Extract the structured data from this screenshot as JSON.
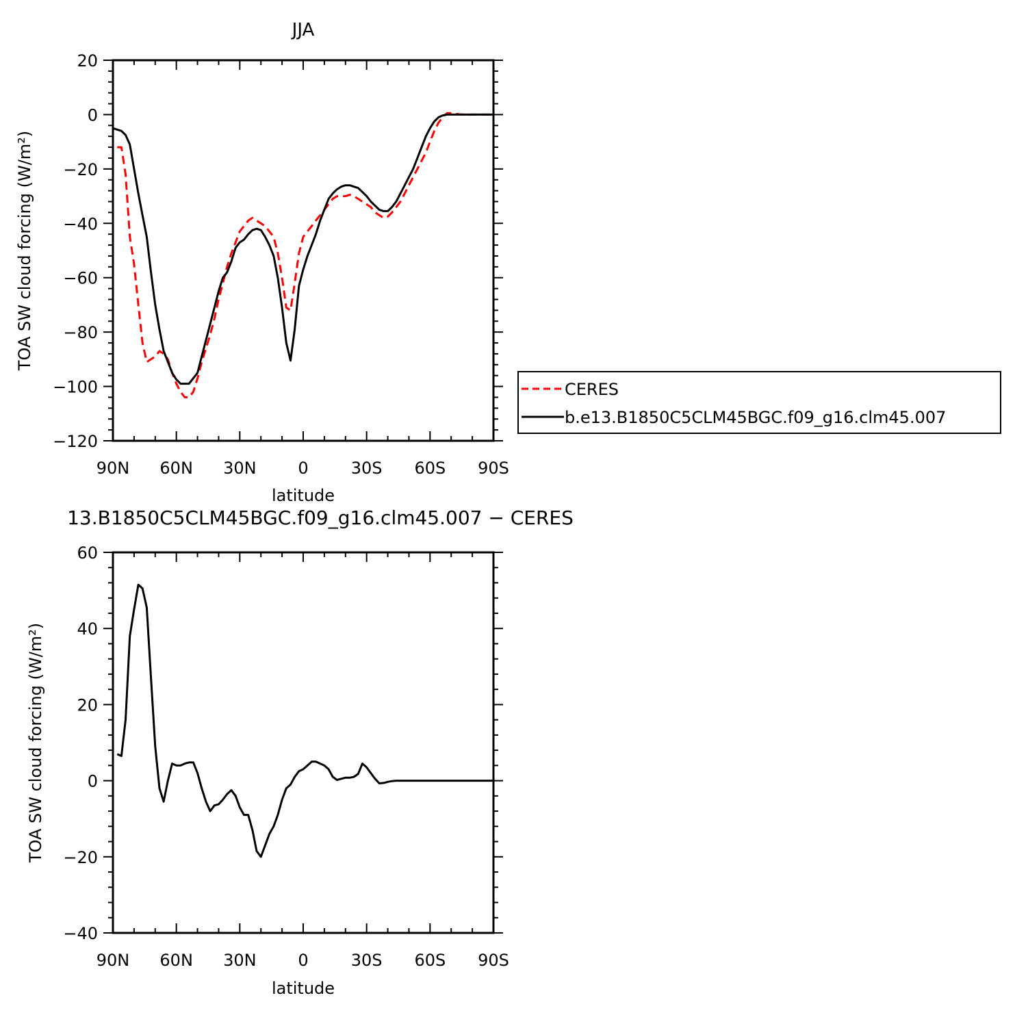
{
  "chart_data": [
    {
      "type": "line",
      "title": "JJA",
      "xlabel": "latitude",
      "ylabel": "TOA SW cloud forcing (W/m²)",
      "xlim": [
        90,
        -90
      ],
      "ylim": [
        -120,
        20
      ],
      "xticks": [
        90,
        60,
        30,
        0,
        -30,
        -60,
        -90
      ],
      "xtick_labels": [
        "90N",
        "60N",
        "30N",
        "0",
        "30S",
        "60S",
        "90S"
      ],
      "yticks": [
        20,
        0,
        -20,
        -40,
        -60,
        -80,
        -100,
        -120
      ],
      "ytick_labels": [
        "20",
        "0",
        "−20",
        "−40",
        "−60",
        "−80",
        "−100",
        "−120"
      ],
      "legend": "right",
      "series": [
        {
          "name": "CERES",
          "color": "#ff0000",
          "dash": "dashed",
          "points": [
            [
              88,
              -12
            ],
            [
              86,
              -12
            ],
            [
              84,
              -22
            ],
            [
              82,
              -45
            ],
            [
              80,
              -55
            ],
            [
              78,
              -70
            ],
            [
              76,
              -84
            ],
            [
              74,
              -91
            ],
            [
              72,
              -90
            ],
            [
              70,
              -89
            ],
            [
              68,
              -87
            ],
            [
              66,
              -88
            ],
            [
              64,
              -90
            ],
            [
              62,
              -95
            ],
            [
              60,
              -99
            ],
            [
              58,
              -102
            ],
            [
              56,
              -104
            ],
            [
              54,
              -104
            ],
            [
              52,
              -102
            ],
            [
              50,
              -97
            ],
            [
              48,
              -91
            ],
            [
              46,
              -86
            ],
            [
              44,
              -81
            ],
            [
              42,
              -75
            ],
            [
              40,
              -68
            ],
            [
              38,
              -62
            ],
            [
              36,
              -56
            ],
            [
              34,
              -51
            ],
            [
              32,
              -47
            ],
            [
              30,
              -43
            ],
            [
              28,
              -41
            ],
            [
              26,
              -39
            ],
            [
              24,
              -38
            ],
            [
              22,
              -39
            ],
            [
              20,
              -40
            ],
            [
              18,
              -41
            ],
            [
              16,
              -43
            ],
            [
              14,
              -45
            ],
            [
              12,
              -51
            ],
            [
              10,
              -60
            ],
            [
              8,
              -71
            ],
            [
              6,
              -72
            ],
            [
              4,
              -62
            ],
            [
              2,
              -51
            ],
            [
              0,
              -45
            ],
            [
              -2,
              -43
            ],
            [
              -4,
              -41
            ],
            [
              -6,
              -39
            ],
            [
              -8,
              -37
            ],
            [
              -10,
              -35
            ],
            [
              -12,
              -33
            ],
            [
              -14,
              -31
            ],
            [
              -16,
              -30
            ],
            [
              -18,
              -30
            ],
            [
              -20,
              -30
            ],
            [
              -22,
              -29.5
            ],
            [
              -24,
              -30
            ],
            [
              -26,
              -31
            ],
            [
              -28,
              -32
            ],
            [
              -30,
              -33
            ],
            [
              -32,
              -34
            ],
            [
              -34,
              -36
            ],
            [
              -36,
              -37
            ],
            [
              -38,
              -38
            ],
            [
              -40,
              -37.5
            ],
            [
              -42,
              -36
            ],
            [
              -44,
              -34
            ],
            [
              -46,
              -32
            ],
            [
              -48,
              -29
            ],
            [
              -50,
              -26
            ],
            [
              -52,
              -23
            ],
            [
              -54,
              -20
            ],
            [
              -56,
              -17
            ],
            [
              -58,
              -14
            ],
            [
              -60,
              -10
            ],
            [
              -62,
              -6
            ],
            [
              -64,
              -3
            ],
            [
              -66,
              -1
            ],
            [
              -68,
              0.5
            ],
            [
              -70,
              0.5
            ],
            [
              -72,
              0.3
            ],
            [
              -74,
              0.1
            ],
            [
              -76,
              0
            ],
            [
              -78,
              0
            ],
            [
              -80,
              0
            ],
            [
              -82,
              0
            ],
            [
              -84,
              0
            ],
            [
              -86,
              0
            ],
            [
              -88,
              0
            ],
            [
              -90,
              0
            ]
          ]
        },
        {
          "name": "b.e13.B1850C5CLM45BGC.f09_g16.clm45.007",
          "color": "#000000",
          "dash": "solid",
          "points": [
            [
              90,
              -5
            ],
            [
              88,
              -5.5
            ],
            [
              86,
              -6
            ],
            [
              84,
              -7.5
            ],
            [
              82,
              -11
            ],
            [
              80,
              -20
            ],
            [
              78,
              -29
            ],
            [
              76,
              -37
            ],
            [
              74,
              -45
            ],
            [
              72,
              -58
            ],
            [
              70,
              -70
            ],
            [
              68,
              -79
            ],
            [
              66,
              -87
            ],
            [
              64,
              -91
            ],
            [
              62,
              -95
            ],
            [
              60,
              -97.5
            ],
            [
              58,
              -99
            ],
            [
              56,
              -99
            ],
            [
              54,
              -99
            ],
            [
              52,
              -97
            ],
            [
              50,
              -95
            ],
            [
              48,
              -89
            ],
            [
              46,
              -83
            ],
            [
              44,
              -77
            ],
            [
              42,
              -71
            ],
            [
              40,
              -65
            ],
            [
              38,
              -60
            ],
            [
              36,
              -58
            ],
            [
              34,
              -54
            ],
            [
              32,
              -49
            ],
            [
              30,
              -47
            ],
            [
              28,
              -46
            ],
            [
              26,
              -44
            ],
            [
              24,
              -42.5
            ],
            [
              22,
              -42
            ],
            [
              20,
              -42.5
            ],
            [
              18,
              -45
            ],
            [
              16,
              -48
            ],
            [
              14,
              -52
            ],
            [
              12,
              -60
            ],
            [
              10,
              -71
            ],
            [
              8,
              -84
            ],
            [
              6,
              -90.5
            ],
            [
              4,
              -79
            ],
            [
              2,
              -63
            ],
            [
              0,
              -57
            ],
            [
              -2,
              -52
            ],
            [
              -4,
              -48
            ],
            [
              -6,
              -44
            ],
            [
              -8,
              -39
            ],
            [
              -10,
              -35
            ],
            [
              -12,
              -31
            ],
            [
              -14,
              -29
            ],
            [
              -16,
              -27.5
            ],
            [
              -18,
              -26.5
            ],
            [
              -20,
              -26
            ],
            [
              -22,
              -26
            ],
            [
              -24,
              -26.5
            ],
            [
              -26,
              -27
            ],
            [
              -28,
              -28.5
            ],
            [
              -30,
              -30
            ],
            [
              -32,
              -32
            ],
            [
              -34,
              -33.5
            ],
            [
              -36,
              -35
            ],
            [
              -38,
              -35.5
            ],
            [
              -40,
              -35.5
            ],
            [
              -42,
              -34
            ],
            [
              -44,
              -32
            ],
            [
              -46,
              -29
            ],
            [
              -48,
              -26
            ],
            [
              -50,
              -23
            ],
            [
              -52,
              -20
            ],
            [
              -54,
              -16
            ],
            [
              -56,
              -12
            ],
            [
              -58,
              -8
            ],
            [
              -60,
              -5
            ],
            [
              -62,
              -2.5
            ],
            [
              -64,
              -1
            ],
            [
              -66,
              -0.3
            ],
            [
              -68,
              0
            ],
            [
              -70,
              0
            ],
            [
              -72,
              0
            ],
            [
              -74,
              0
            ],
            [
              -76,
              0
            ],
            [
              -78,
              0
            ],
            [
              -80,
              0
            ],
            [
              -82,
              0
            ],
            [
              -84,
              0
            ],
            [
              -86,
              0
            ],
            [
              -88,
              0
            ],
            [
              -90,
              0
            ]
          ]
        }
      ]
    },
    {
      "type": "line",
      "title": "13.B1850C5CLM45BGC.f09_g16.clm45.007 − CERES",
      "xlabel": "latitude",
      "ylabel": "TOA SW cloud forcing (W/m²)",
      "xlim": [
        90,
        -90
      ],
      "ylim": [
        -40,
        60
      ],
      "xticks": [
        90,
        60,
        30,
        0,
        -30,
        -60,
        -90
      ],
      "xtick_labels": [
        "90N",
        "60N",
        "30N",
        "0",
        "30S",
        "60S",
        "90S"
      ],
      "yticks": [
        60,
        40,
        20,
        0,
        -20,
        -40
      ],
      "ytick_labels": [
        "60",
        "40",
        "20",
        "0",
        "−20",
        "−40"
      ],
      "series": [
        {
          "color": "#000000",
          "dash": "solid",
          "points": [
            [
              88,
              7
            ],
            [
              86,
              6.5
            ],
            [
              84,
              16
            ],
            [
              82,
              38
            ],
            [
              80,
              45
            ],
            [
              78,
              51.5
            ],
            [
              76,
              50.5
            ],
            [
              74,
              45.5
            ],
            [
              72,
              27
            ],
            [
              70,
              9
            ],
            [
              68,
              -2
            ],
            [
              66,
              -5.5
            ],
            [
              64,
              0
            ],
            [
              62,
              4.5
            ],
            [
              60,
              4
            ],
            [
              58,
              4
            ],
            [
              56,
              4.5
            ],
            [
              54,
              4.8
            ],
            [
              52,
              4.8
            ],
            [
              50,
              2
            ],
            [
              48,
              -2
            ],
            [
              46,
              -5.5
            ],
            [
              44,
              -8
            ],
            [
              42,
              -6.5
            ],
            [
              40,
              -6.2
            ],
            [
              38,
              -5
            ],
            [
              36,
              -3.5
            ],
            [
              34,
              -2.5
            ],
            [
              32,
              -4
            ],
            [
              30,
              -7
            ],
            [
              28,
              -9
            ],
            [
              26,
              -9
            ],
            [
              24,
              -13
            ],
            [
              22,
              -18.5
            ],
            [
              20,
              -20
            ],
            [
              18,
              -17
            ],
            [
              16,
              -14
            ],
            [
              14,
              -12
            ],
            [
              12,
              -9
            ],
            [
              10,
              -5
            ],
            [
              8,
              -2
            ],
            [
              6,
              -1
            ],
            [
              4,
              1
            ],
            [
              2,
              2.5
            ],
            [
              0,
              3
            ],
            [
              -2,
              4
            ],
            [
              -4,
              5
            ],
            [
              -6,
              5
            ],
            [
              -8,
              4.5
            ],
            [
              -10,
              4
            ],
            [
              -12,
              3
            ],
            [
              -14,
              1
            ],
            [
              -16,
              0.2
            ],
            [
              -18,
              0.5
            ],
            [
              -20,
              0.8
            ],
            [
              -22,
              0.8
            ],
            [
              -24,
              1
            ],
            [
              -26,
              1.8
            ],
            [
              -28,
              4.5
            ],
            [
              -30,
              3.5
            ],
            [
              -32,
              2
            ],
            [
              -34,
              0.5
            ],
            [
              -36,
              -0.7
            ],
            [
              -38,
              -0.6
            ],
            [
              -40,
              -0.3
            ],
            [
              -42,
              -0.1
            ],
            [
              -44,
              0
            ],
            [
              -46,
              0
            ],
            [
              -48,
              0
            ],
            [
              -50,
              0
            ],
            [
              -52,
              0
            ],
            [
              -54,
              0
            ],
            [
              -56,
              0
            ],
            [
              -58,
              0
            ],
            [
              -60,
              0
            ],
            [
              -62,
              0
            ],
            [
              -64,
              0
            ],
            [
              -66,
              0
            ],
            [
              -68,
              0
            ],
            [
              -70,
              0
            ],
            [
              -72,
              0
            ],
            [
              -74,
              0
            ],
            [
              -76,
              0
            ],
            [
              -78,
              0
            ],
            [
              -80,
              0
            ],
            [
              -82,
              0
            ],
            [
              -84,
              0
            ],
            [
              -86,
              0
            ],
            [
              -88,
              0
            ],
            [
              -90,
              0
            ]
          ]
        }
      ]
    }
  ]
}
